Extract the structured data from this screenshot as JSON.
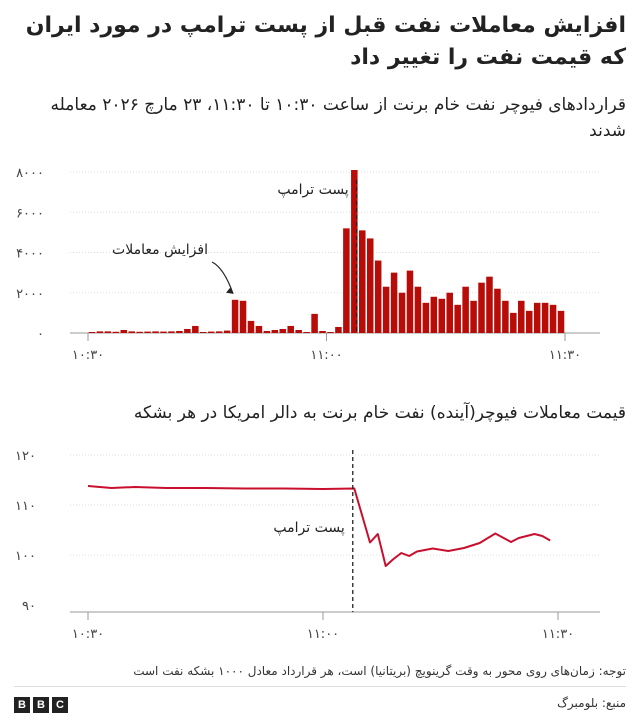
{
  "header": {
    "title": "افزایش معاملات نفت قبل از پست ترامپ در مورد ایران که قیمت نفت را تغییر داد",
    "subtitle_volume": "قراردادهای فیوچر نفت خام برنت از ساعت ۱۰:۳۰ تا ۱۱:۳۰، ۲۳ مارچ ۲۰۲۶ معامله شدند",
    "subtitle_price": "قیمت معاملات فیوچر(آینده) نفت خام برنت به دالر امریکا در هر بشکه"
  },
  "footer": {
    "note": "توجه: زمان‌های روی محور به وقت گرینویچ (بریتانیا) است، هر قرارداد معادل ۱۰۰۰ بشکه نفت است",
    "source": "منبع: بلومبرگ",
    "logo_letters": [
      "B",
      "B",
      "C"
    ]
  },
  "colors": {
    "bar": "#b80c09",
    "line": "#c8102e",
    "axis": "#999999",
    "grid": "#dddddd",
    "annotation": "#222222"
  },
  "chart_data": [
    {
      "type": "bar",
      "title": "قراردادهای فیوچر نفت خام برنت از ساعت ۱۰:۳۰ تا ۱۱:۳۰، ۲۳ مارچ ۲۰۲۶ معامله شدند",
      "x_unit": "minute",
      "xlim": [
        "10:30",
        "11:30"
      ],
      "x_ticks": [
        "۱۰:۳۰",
        "۱۱:۰۰",
        "۱۱:۳۰"
      ],
      "ylim": [
        0,
        8000
      ],
      "y_ticks": [
        0,
        2000,
        4000,
        6000,
        8000
      ],
      "y_tick_labels": [
        "۰",
        "۲۰۰۰",
        "۴۰۰۰",
        "۶۰۰۰",
        "۸۰۰۰"
      ],
      "grid": true,
      "times": [
        "10:30",
        "10:31",
        "10:32",
        "10:33",
        "10:34",
        "10:35",
        "10:36",
        "10:37",
        "10:38",
        "10:39",
        "10:40",
        "10:41",
        "10:42",
        "10:43",
        "10:44",
        "10:45",
        "10:46",
        "10:47",
        "10:48",
        "10:49",
        "10:50",
        "10:51",
        "10:52",
        "10:53",
        "10:54",
        "10:55",
        "10:56",
        "10:57",
        "10:58",
        "10:59",
        "11:00",
        "11:01",
        "11:02",
        "11:03",
        "11:04",
        "11:05",
        "11:06",
        "11:07",
        "11:08",
        "11:09",
        "11:10",
        "11:11",
        "11:12",
        "11:13",
        "11:14",
        "11:15",
        "11:16",
        "11:17",
        "11:18",
        "11:19",
        "11:20",
        "11:21",
        "11:22",
        "11:23",
        "11:24",
        "11:25",
        "11:26",
        "11:27",
        "11:28",
        "11:29"
      ],
      "values": [
        50,
        80,
        80,
        60,
        150,
        80,
        60,
        70,
        80,
        70,
        80,
        100,
        200,
        350,
        50,
        70,
        80,
        120,
        1650,
        1600,
        600,
        350,
        100,
        150,
        200,
        350,
        150,
        50,
        950,
        100,
        50,
        300,
        5200,
        8100,
        5100,
        4700,
        3600,
        2300,
        3000,
        2000,
        3100,
        2300,
        1500,
        1800,
        1700,
        2000,
        1400,
        2300,
        1600,
        2500,
        2800,
        2200,
        1600,
        1000,
        1600,
        1100,
        1500,
        1500,
        1400,
        1100
      ],
      "annotations": [
        {
          "text": "پست ترامپ",
          "x": "11:04"
        },
        {
          "text": "افزایش معاملات",
          "x": "10:48"
        }
      ]
    },
    {
      "type": "line",
      "title": "قیمت معاملات فیوچر(آینده) نفت خام برنت به دالر امریکا در هر بشکه",
      "xlim": [
        "10:30",
        "11:30"
      ],
      "x_ticks": [
        "۱۰:۳۰",
        "۱۱:۰۰",
        "۱۱:۳۰"
      ],
      "ylim": [
        90,
        120
      ],
      "y_ticks": [
        90,
        100,
        110,
        120
      ],
      "y_tick_labels": [
        "۹۰",
        "۱۰۰",
        "۱۱۰",
        "۱۲۰"
      ],
      "grid": true,
      "x": [
        "10:30",
        "10:33",
        "10:36",
        "10:40",
        "10:45",
        "10:50",
        "10:55",
        "11:00",
        "11:04",
        "11:06",
        "11:07",
        "11:08",
        "11:09",
        "11:10",
        "11:11",
        "11:12",
        "11:14",
        "11:16",
        "11:18",
        "11:20",
        "11:22",
        "11:24",
        "11:25",
        "11:26",
        "11:27",
        "11:28",
        "11:29"
      ],
      "y": [
        113.8,
        113.4,
        113.6,
        113.4,
        113.4,
        113.3,
        113.3,
        113.2,
        113.3,
        102.5,
        104.2,
        97.8,
        99.2,
        100.4,
        99.8,
        100.7,
        101.3,
        100.8,
        101.4,
        102.4,
        104.3,
        102.6,
        103.4,
        103.8,
        104.2,
        103.8,
        102.9
      ],
      "annotations": [
        {
          "text": "پست ترامپ",
          "x": "11:04"
        }
      ]
    }
  ]
}
